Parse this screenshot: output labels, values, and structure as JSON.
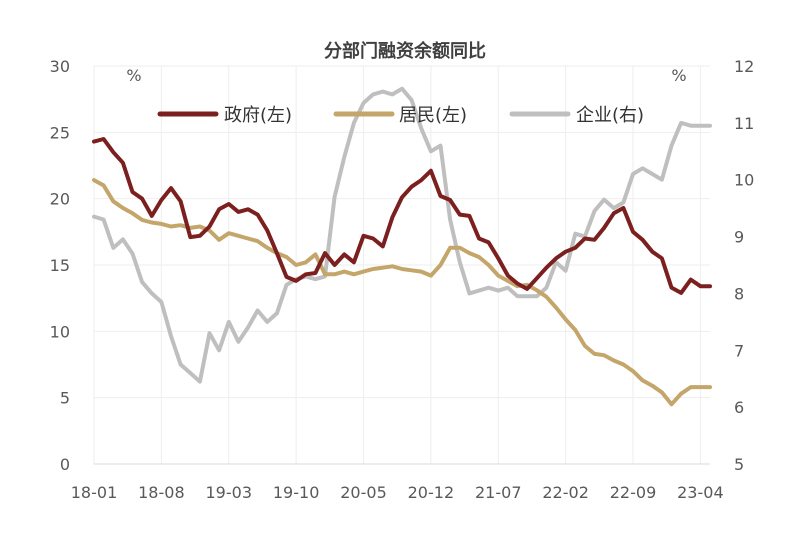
{
  "chart_data": {
    "type": "line",
    "title": "分部门融资余额同比",
    "y_left": {
      "unit": "%",
      "lim": [
        0,
        30
      ],
      "ticks": [
        0,
        5,
        10,
        15,
        20,
        25,
        30
      ]
    },
    "y_right": {
      "unit": "%",
      "lim": [
        5,
        12
      ],
      "ticks": [
        5,
        6,
        7,
        8,
        9,
        10,
        11,
        12
      ]
    },
    "x_ticks": [
      "18-01",
      "18-08",
      "19-03",
      "19-10",
      "20-05",
      "20-12",
      "21-07",
      "22-02",
      "22-09",
      "23-04"
    ],
    "x_tick_index": [
      0,
      7,
      14,
      21,
      28,
      35,
      42,
      49,
      56,
      63
    ],
    "grid": "horizontal",
    "legend_position": "top",
    "series": [
      {
        "name": "政府(左)",
        "axis": "left",
        "color": "#7b1f1f",
        "values": [
          24.3,
          24.5,
          23.5,
          22.7,
          20.5,
          20.0,
          18.7,
          19.9,
          20.8,
          19.8,
          17.1,
          17.2,
          17.9,
          19.2,
          19.6,
          19.0,
          19.2,
          18.8,
          17.6,
          15.9,
          14.1,
          13.8,
          14.3,
          14.4,
          15.9,
          15.0,
          15.8,
          15.2,
          17.2,
          17.0,
          16.4,
          18.6,
          20.1,
          20.9,
          21.4,
          22.1,
          20.2,
          19.9,
          18.8,
          18.7,
          17.0,
          16.7,
          15.5,
          14.2,
          13.6,
          13.2,
          14.0,
          14.8,
          15.5,
          16.0,
          16.3,
          17.0,
          16.9,
          17.8,
          18.9,
          19.3,
          17.5,
          16.9,
          16.0,
          15.5,
          13.3,
          12.9,
          13.9,
          13.4,
          13.4
        ]
      },
      {
        "name": "居民(左)",
        "axis": "left",
        "color": "#c4a56a",
        "values": [
          21.4,
          21.0,
          19.8,
          19.3,
          18.9,
          18.4,
          18.2,
          18.1,
          17.9,
          18.0,
          17.8,
          17.9,
          17.6,
          16.9,
          17.4,
          17.2,
          17.0,
          16.8,
          16.3,
          15.9,
          15.6,
          15.0,
          15.2,
          15.8,
          14.3,
          14.3,
          14.5,
          14.3,
          14.5,
          14.7,
          14.8,
          14.9,
          14.7,
          14.6,
          14.5,
          14.2,
          15.0,
          16.3,
          16.3,
          15.9,
          15.6,
          15.0,
          14.2,
          13.8,
          13.4,
          13.5,
          13.1,
          12.6,
          11.8,
          10.9,
          10.1,
          8.9,
          8.3,
          8.2,
          7.8,
          7.5,
          7.0,
          6.3,
          5.9,
          5.4,
          4.5,
          5.3,
          5.8,
          5.8,
          5.8
        ]
      },
      {
        "name": "企业(右)",
        "axis": "right",
        "color": "#bfbfbf",
        "values": [
          9.35,
          9.3,
          8.8,
          8.95,
          8.7,
          8.2,
          8.0,
          7.85,
          7.25,
          6.75,
          6.6,
          6.45,
          7.3,
          7.0,
          7.5,
          7.15,
          7.4,
          7.7,
          7.5,
          7.65,
          8.15,
          8.25,
          8.3,
          8.25,
          8.3,
          9.7,
          10.4,
          11.0,
          11.35,
          11.5,
          11.55,
          11.5,
          11.6,
          11.4,
          10.9,
          10.5,
          10.6,
          9.3,
          8.55,
          8.0,
          8.05,
          8.1,
          8.05,
          8.1,
          7.95,
          7.95,
          7.95,
          8.1,
          8.55,
          8.4,
          9.05,
          9.0,
          9.45,
          9.65,
          9.5,
          9.6,
          10.1,
          10.2,
          10.1,
          10.0,
          10.6,
          11.0,
          10.95,
          10.95,
          10.95
        ]
      }
    ]
  }
}
